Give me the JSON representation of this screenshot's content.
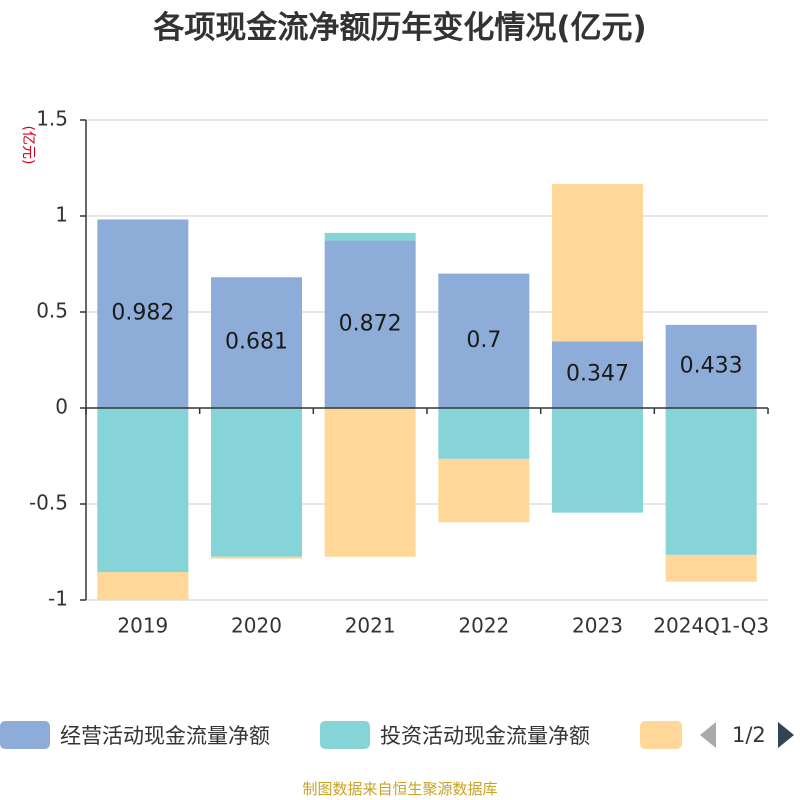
{
  "chart_data": {
    "type": "bar",
    "stacked": true,
    "title": "各项现金流净额历年变化情况(亿元)",
    "ylabel": "(亿元)",
    "ylim": [
      -1,
      1.5
    ],
    "yticks": [
      1.5,
      1,
      0.5,
      0,
      -0.5,
      -1
    ],
    "ytick_labels": [
      "1.5",
      "1",
      "0.5",
      "0",
      "-0.5",
      "-1"
    ],
    "categories": [
      "2019",
      "2020",
      "2021",
      "2022",
      "2023",
      "2024Q1-Q3"
    ],
    "series": [
      {
        "name": "经营活动现金流量净额",
        "color": "#8eacd8",
        "values": [
          0.982,
          0.681,
          0.872,
          0.7,
          0.347,
          0.433
        ],
        "labels": [
          "0.982",
          "0.681",
          "0.872",
          "0.7",
          "0.347",
          "0.433"
        ]
      },
      {
        "name": "投资活动现金流量净额",
        "color": "#86d4d8",
        "values": [
          -0.855,
          -0.775,
          0.04,
          -0.265,
          -0.545,
          -0.765
        ]
      },
      {
        "name": "",
        "color": "#ffd899",
        "values": [
          -0.145,
          -0.01,
          -0.775,
          -0.33,
          0.82,
          -0.14
        ]
      }
    ],
    "legend_position": "bottom",
    "grid": true
  },
  "legend": {
    "items": [
      {
        "label": "经营活动现金流量净额",
        "color": "#8eacd8"
      },
      {
        "label": "投资活动现金流量净额",
        "color": "#86d4d8"
      },
      {
        "label": "",
        "color": "#ffd899"
      }
    ],
    "page": "1/2"
  },
  "source": "制图数据来自恒生聚源数据库"
}
